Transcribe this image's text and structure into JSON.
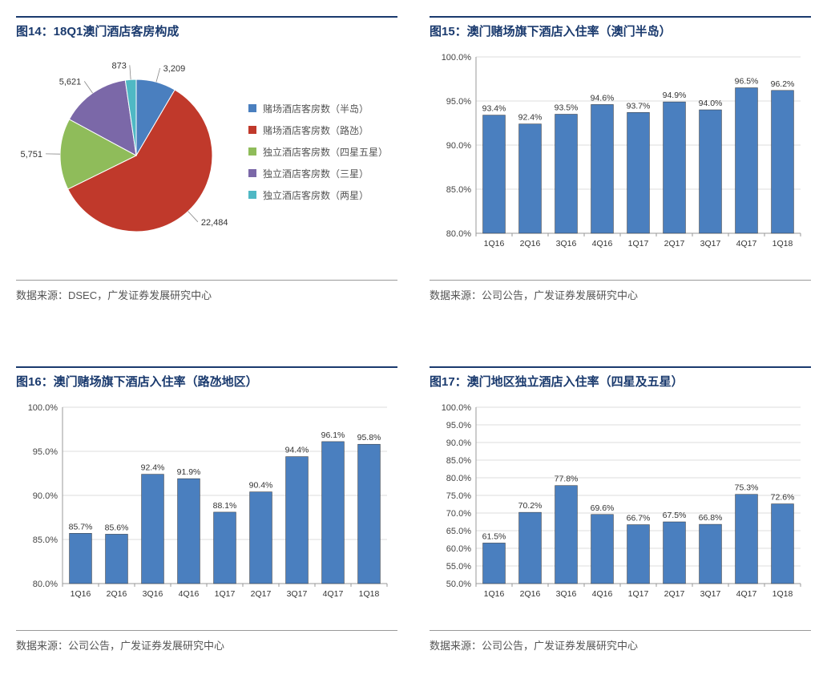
{
  "panels": [
    {
      "id": "fig14",
      "title": "图14：18Q1澳门酒店客房构成",
      "source": "数据来源：DSEC，广发证券发展研究中心",
      "type": "pie",
      "pie": {
        "slices": [
          {
            "label": "赌场酒店客房数（半岛）",
            "value": 3209,
            "display": "3,209",
            "color": "#4a7fbf"
          },
          {
            "label": "赌场酒店客房数（路氹）",
            "value": 22484,
            "display": "22,484",
            "color": "#c0392b"
          },
          {
            "label": "独立酒店客房数（四星五星）",
            "value": 5751,
            "display": "5,751",
            "color": "#8fbc5a"
          },
          {
            "label": "独立酒店客房数（三星）",
            "value": 5621,
            "display": "5,621",
            "color": "#7b68a8"
          },
          {
            "label": "独立酒店客房数（两星）",
            "value": 873,
            "display": "873",
            "color": "#4fb8c4"
          }
        ],
        "label_fontsize": 11
      }
    },
    {
      "id": "fig15",
      "title": "图15：澳门赌场旗下酒店入住率（澳门半岛）",
      "source": "数据来源：公司公告，广发证券发展研究中心",
      "type": "bar",
      "bar": {
        "categories": [
          "1Q16",
          "2Q16",
          "3Q16",
          "4Q16",
          "1Q17",
          "2Q17",
          "3Q17",
          "4Q17",
          "1Q18"
        ],
        "values": [
          93.4,
          92.4,
          93.5,
          94.6,
          93.7,
          94.9,
          94.0,
          96.5,
          96.2
        ],
        "value_suffix": "%",
        "bar_color": "#4a7fbf",
        "ylim": [
          80,
          100
        ],
        "ytick_step": 5,
        "ytick_suffix": "%",
        "ytick_decimals": 1,
        "grid_color": "#bbb",
        "bar_width": 0.62,
        "label_fontsize": 10.5
      }
    },
    {
      "id": "fig16",
      "title": "图16：澳门赌场旗下酒店入住率（路氹地区）",
      "source": "数据来源：公司公告，广发证券发展研究中心",
      "type": "bar",
      "bar": {
        "categories": [
          "1Q16",
          "2Q16",
          "3Q16",
          "4Q16",
          "1Q17",
          "2Q17",
          "3Q17",
          "4Q17",
          "1Q18"
        ],
        "values": [
          85.7,
          85.6,
          92.4,
          91.9,
          88.1,
          90.4,
          94.4,
          96.1,
          95.8
        ],
        "value_suffix": "%",
        "bar_color": "#4a7fbf",
        "ylim": [
          80,
          100
        ],
        "ytick_step": 5,
        "ytick_suffix": "%",
        "ytick_decimals": 1,
        "grid_color": "#bbb",
        "bar_width": 0.62,
        "label_fontsize": 10.5
      }
    },
    {
      "id": "fig17",
      "title": "图17：澳门地区独立酒店入住率（四星及五星）",
      "source": "数据来源：公司公告，广发证券发展研究中心",
      "type": "bar",
      "bar": {
        "categories": [
          "1Q16",
          "2Q16",
          "3Q16",
          "4Q16",
          "1Q17",
          "2Q17",
          "3Q17",
          "4Q17",
          "1Q18"
        ],
        "values": [
          61.5,
          70.2,
          77.8,
          69.6,
          66.7,
          67.5,
          66.8,
          75.3,
          72.6
        ],
        "value_suffix": "%",
        "bar_color": "#4a7fbf",
        "ylim": [
          50,
          100
        ],
        "ytick_step": 5,
        "ytick_suffix": "%",
        "ytick_decimals": 1,
        "grid_color": "#bbb",
        "bar_width": 0.62,
        "label_fontsize": 10.5
      }
    }
  ]
}
